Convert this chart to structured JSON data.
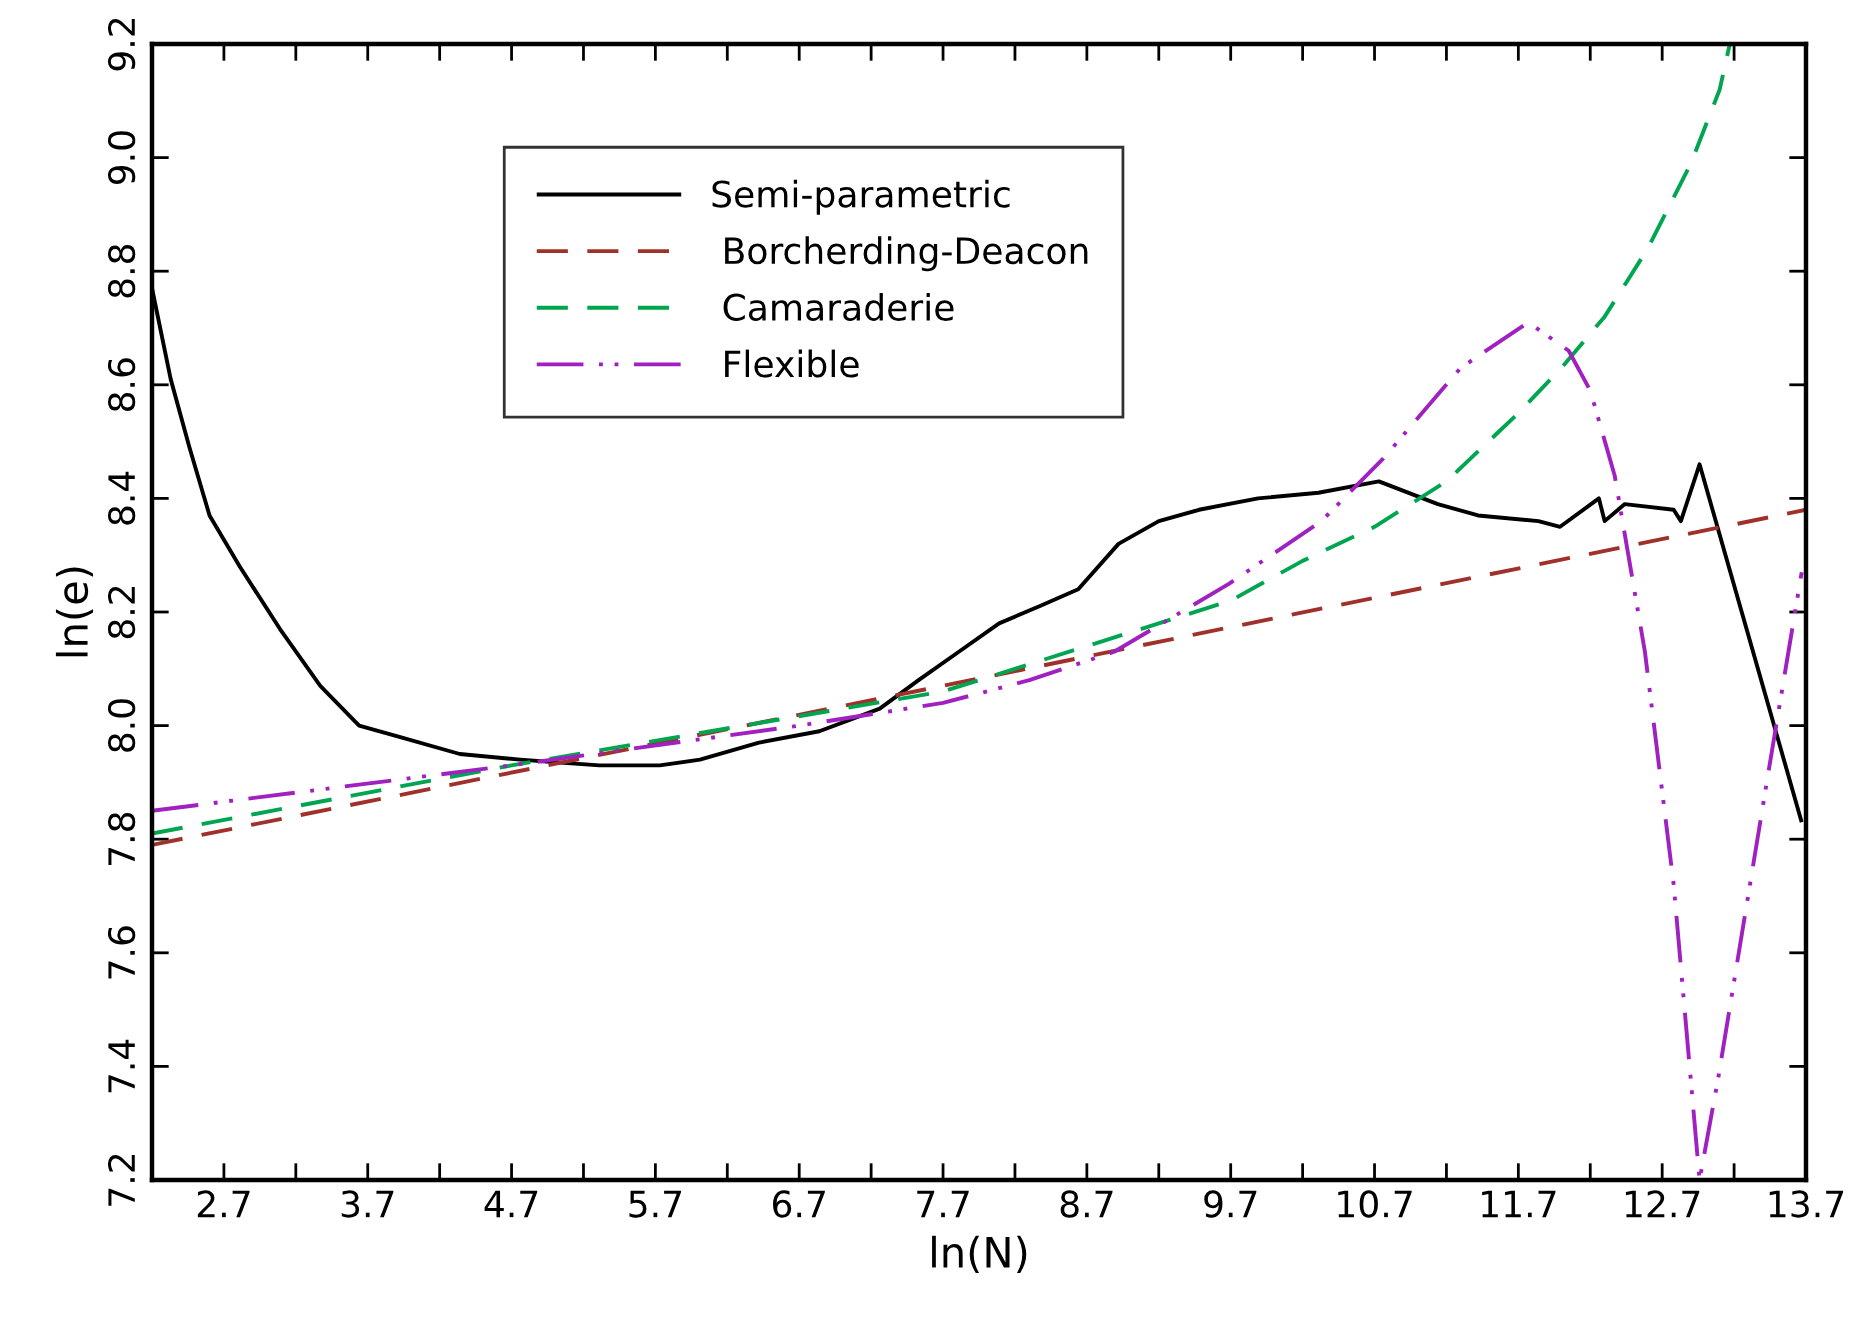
{
  "chart_data": {
    "type": "line",
    "xlabel": "ln(N)",
    "ylabel": "ln(e)",
    "xlim": [
      2.2,
      13.7
    ],
    "ylim": [
      7.2,
      9.2
    ],
    "xticks": [
      2.7,
      {
        "value": 3.2,
        "label": null
      },
      3.7,
      {
        "value": 4.2,
        "label": null
      },
      4.7,
      {
        "value": 5.2,
        "label": null
      },
      5.7,
      {
        "value": 6.2,
        "label": null
      },
      6.7,
      {
        "value": 7.2,
        "label": null
      },
      7.7,
      {
        "value": 8.2,
        "label": null
      },
      8.7,
      {
        "value": 9.2,
        "label": null
      },
      9.7,
      {
        "value": 10.2,
        "label": null
      },
      10.7,
      {
        "value": 11.2,
        "label": null
      },
      11.7,
      {
        "value": 12.2,
        "label": null
      },
      12.7,
      {
        "value": 13.2,
        "label": null
      },
      13.7
    ],
    "yticks": [
      7.2,
      7.4,
      7.6,
      7.8,
      {
        "value": 8,
        "label": "8.0"
      },
      8.2,
      8.4,
      8.6,
      8.8,
      {
        "value": 9,
        "label": "9.0"
      },
      9.2
    ],
    "grid": false,
    "legend": "top",
    "marker": "none",
    "series": [
      {
        "name": "Semi-parametric",
        "color": "#000000",
        "line_style": "solid",
        "x": [
          2.2,
          2.33,
          2.46,
          2.6,
          2.81,
          3.09,
          3.37,
          3.64,
          3.92,
          4.34,
          4.76,
          5.31,
          5.73,
          6.01,
          6.42,
          6.84,
          7.26,
          7.53,
          7.81,
          8.09,
          8.37,
          8.64,
          8.92,
          9.2,
          9.48,
          9.89,
          10.31,
          10.73,
          11.14,
          11.42,
          11.84,
          11.99,
          12.26,
          12.3,
          12.44,
          12.78,
          12.83,
          12.96,
          13.67
        ],
        "values": [
          8.77,
          8.61,
          8.49,
          8.37,
          8.28,
          8.17,
          8.07,
          8.0,
          7.98,
          7.95,
          7.94,
          7.93,
          7.93,
          7.94,
          7.97,
          7.99,
          8.03,
          8.08,
          8.13,
          8.18,
          8.21,
          8.24,
          8.32,
          8.36,
          8.38,
          8.4,
          8.41,
          8.43,
          8.39,
          8.37,
          8.36,
          8.35,
          8.4,
          8.36,
          8.39,
          8.38,
          8.36,
          8.46,
          7.83
        ]
      },
      {
        "name": " Borcherding-Deacon",
        "color": "#a0302a",
        "line_style": "dashed",
        "x": [
          2.2,
          7.7,
          13.7
        ],
        "values": [
          7.79,
          8.07,
          8.38
        ]
      },
      {
        "name": " Camaraderie",
        "color": "#00a550",
        "line_style": "dashed",
        "x": [
          2.2,
          4.7,
          7.7,
          8.7,
          9.7,
          10.2,
          10.7,
          11.2,
          11.7,
          12.0,
          12.3,
          12.6,
          12.9,
          13.1,
          13.17
        ],
        "values": [
          7.81,
          7.93,
          8.06,
          8.14,
          8.22,
          8.29,
          8.35,
          8.43,
          8.55,
          8.63,
          8.72,
          8.84,
          8.99,
          9.12,
          9.2
        ]
      },
      {
        "name": " Flexible",
        "color": "#a020c0",
        "line_style": "dashdot",
        "x": [
          2.2,
          4.7,
          6.7,
          7.7,
          8.3,
          8.89,
          9.69,
          10.33,
          10.76,
          11.3,
          11.77,
          12.05,
          12.2,
          12.37,
          12.58,
          12.78,
          12.96,
          13.09,
          13.44,
          13.67
        ],
        "values": [
          7.85,
          7.93,
          8.0,
          8.04,
          8.08,
          8.13,
          8.25,
          8.36,
          8.47,
          8.63,
          8.71,
          8.66,
          8.59,
          8.44,
          8.13,
          7.72,
          7.2,
          7.38,
          7.92,
          8.27
        ]
      }
    ]
  }
}
